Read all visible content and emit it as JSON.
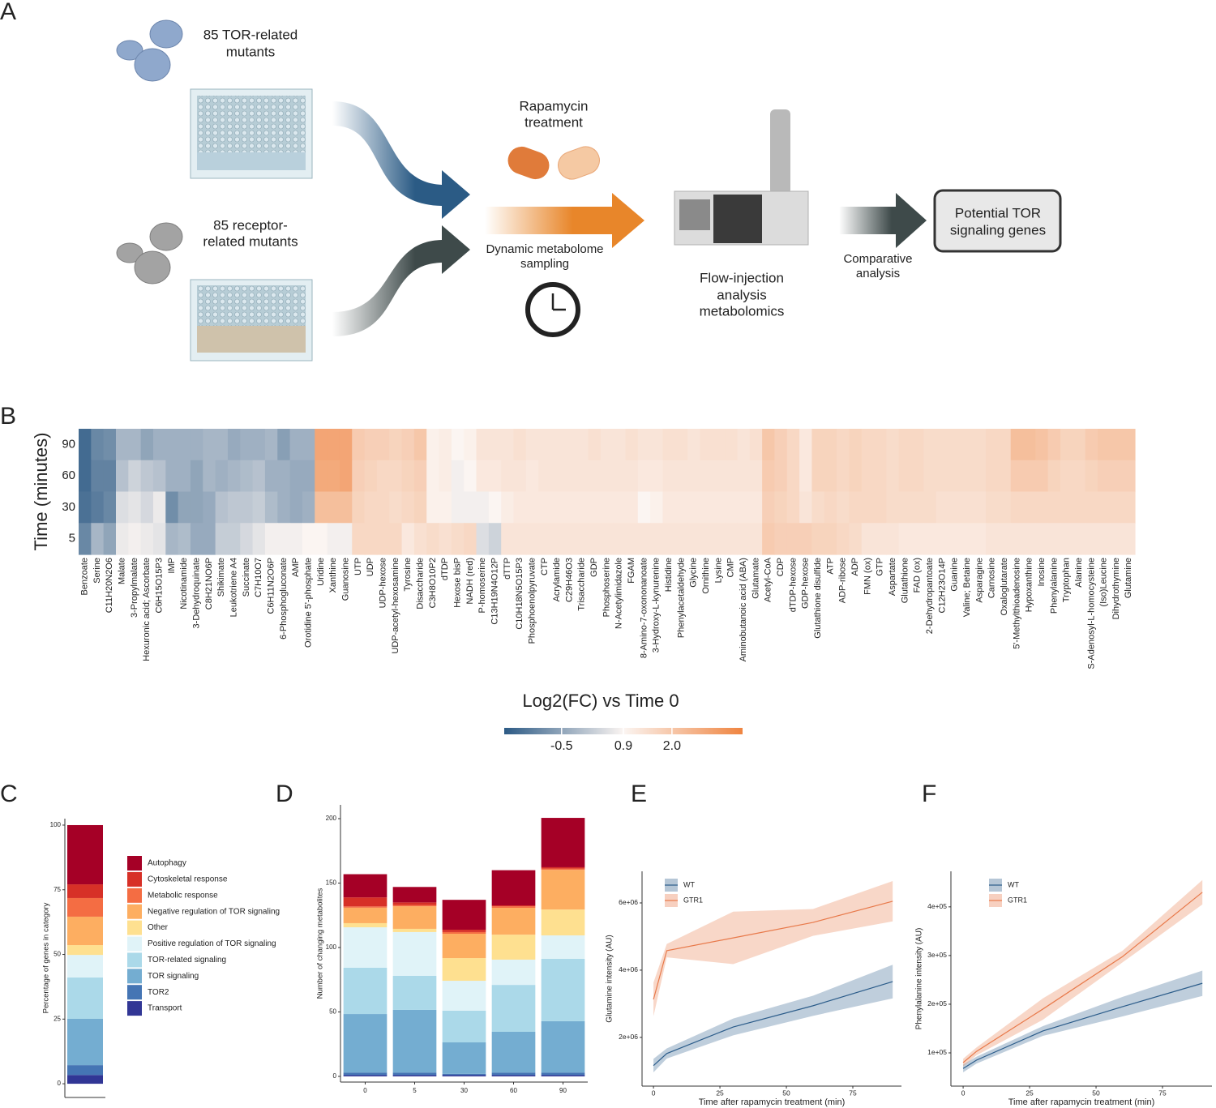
{
  "panel_labels": [
    "A",
    "B",
    "C",
    "D",
    "E",
    "F"
  ],
  "diagram": {
    "tor_mutants": [
      "85 TOR-related",
      "mutants"
    ],
    "receptor_mutants": [
      "85 receptor-",
      "related mutants"
    ],
    "rapamycin": [
      "Rapamycin",
      "treatment"
    ],
    "sampling": [
      "Dynamic metabolome",
      "sampling"
    ],
    "fia": [
      "Flow-injection",
      "analysis",
      "metabolomics"
    ],
    "comparative": [
      "Comparative",
      "analysis"
    ],
    "result": [
      "Potential TOR",
      "signaling genes"
    ]
  },
  "chart_data": [
    {
      "type": "heatmap",
      "title": "Log2(FC) vs Time 0",
      "y_label": "Time (minutes)",
      "categories": [
        "Benzoate",
        "Serine",
        "C11H20N2O6",
        "Malate",
        "3-Propylmalate",
        "Hexuronic acid; Ascorbate",
        "C6H15O15P3",
        "IMP",
        "Nicotinamide",
        "3-Dehydroquinate",
        "C8H21NO6P",
        "Shikimate",
        "Leukotriene A4",
        "Succinate",
        "C7H10O7",
        "C6H11N2O6P",
        "6-Phosphogluconate",
        "AMP",
        "Orotidine 5'-phosphate",
        "Uridine",
        "Xanthine",
        "Guanosine",
        "UTP",
        "UDP",
        "UDP-hexose",
        "UDP-acetyl-hexosamine",
        "Tyrosine",
        "Disaccharide",
        "C3H8O10P2",
        "dTDP",
        "Hexose bisP",
        "NADH (red)",
        "P-homoserine",
        "C13H19N4O12P",
        "dTTP",
        "C10H18N5O15P3",
        "Phosphoenolpyruvate",
        "CTP",
        "Acrylamide",
        "C29H46O3",
        "Trisaccharide",
        "GDP",
        "Phosphoserine",
        "N-Acetylimidazole",
        "FGAM",
        "8-Amino-7-oxononanoate",
        "3-Hydroxy-L-kynurenine",
        "Histidine",
        "Phenylacetaldehyde",
        "Glycine",
        "Ornithine",
        "Lysine",
        "CMP",
        "Aminobutanoic acid (ABA)",
        "Glutamate",
        "Acetyl-CoA",
        "CDP",
        "dTDP-hexose",
        "GDP-hexose",
        "Glutathione disulfide",
        "ATP",
        "ADP-ribose",
        "ADP",
        "FMN (ox)",
        "GTP",
        "Aspartate",
        "Glutathione",
        "FAD (ox)",
        "2-Dehydropantoate",
        "C12H23O14P",
        "Guanine",
        "Valine; Betaine",
        "Asparagine",
        "Carnosine",
        "Oxaloglutarate",
        "5'-Methylthioadenosine",
        "Hypoxanthine",
        "Inosine",
        "Phenylalanine",
        "Tryptophan",
        "Alanine",
        "S-Adenosyl-L-homocysteine",
        "(Iso)Leucine",
        "Dihydrothymine",
        "Glutamine"
      ],
      "rows": [
        "90",
        "60",
        "30",
        "5"
      ],
      "values": [
        [
          -1.5,
          -1.0,
          -0.9,
          -0.2,
          -0.2,
          -0.5,
          -0.3,
          -0.3,
          -0.3,
          -0.3,
          -0.2,
          -0.2,
          -0.4,
          -0.3,
          -0.3,
          -0.2,
          -0.6,
          -0.3,
          -0.3,
          2.8,
          2.8,
          2.8,
          1.9,
          1.8,
          1.8,
          1.7,
          1.8,
          2.0,
          1.0,
          1.1,
          0.9,
          1.0,
          1.3,
          1.3,
          1.3,
          1.4,
          1.3,
          1.3,
          1.3,
          1.3,
          1.3,
          1.4,
          1.3,
          1.3,
          1.4,
          1.3,
          1.3,
          1.4,
          1.4,
          1.3,
          1.4,
          1.4,
          1.4,
          1.3,
          1.4,
          2.0,
          1.8,
          1.6,
          1.2,
          1.7,
          1.7,
          1.6,
          1.7,
          1.6,
          1.6,
          1.5,
          1.6,
          1.6,
          1.5,
          1.5,
          1.5,
          1.5,
          1.5,
          1.6,
          1.6,
          2.2,
          2.2,
          2.1,
          1.9,
          1.7,
          1.7,
          1.9,
          2.0,
          2.0,
          2.0
        ],
        [
          -1.5,
          -1.1,
          -1.1,
          0.0,
          0.3,
          0.1,
          0.0,
          -0.3,
          -0.3,
          -0.5,
          -0.2,
          -0.3,
          -0.2,
          -0.1,
          0.0,
          -0.3,
          -0.3,
          -0.4,
          -0.4,
          2.7,
          2.7,
          2.8,
          1.8,
          1.7,
          1.6,
          1.6,
          1.7,
          1.8,
          1.0,
          1.1,
          0.8,
          0.9,
          1.2,
          1.2,
          1.3,
          1.3,
          1.2,
          1.3,
          1.3,
          1.3,
          1.3,
          1.3,
          1.3,
          1.3,
          1.3,
          1.2,
          1.2,
          1.3,
          1.3,
          1.3,
          1.3,
          1.3,
          1.3,
          1.3,
          1.3,
          1.9,
          1.8,
          1.6,
          1.2,
          1.7,
          1.7,
          1.6,
          1.7,
          1.6,
          1.6,
          1.5,
          1.6,
          1.6,
          1.5,
          1.5,
          1.5,
          1.5,
          1.5,
          1.6,
          1.6,
          1.9,
          1.9,
          1.9,
          1.7,
          1.6,
          1.6,
          1.7,
          1.8,
          1.8,
          1.8
        ],
        [
          -1.4,
          -1.2,
          -1.0,
          0.5,
          0.6,
          0.4,
          0.7,
          -0.9,
          -0.5,
          -0.5,
          -0.4,
          0.0,
          0.1,
          0.1,
          0.2,
          -0.1,
          -0.3,
          -0.4,
          -0.3,
          2.2,
          2.2,
          2.2,
          1.7,
          1.6,
          1.6,
          1.5,
          1.6,
          1.7,
          1.0,
          1.0,
          0.8,
          0.8,
          0.8,
          0.9,
          1.1,
          1.2,
          1.2,
          1.2,
          1.2,
          1.2,
          1.2,
          1.2,
          1.2,
          1.2,
          1.2,
          0.9,
          1.0,
          1.2,
          1.2,
          1.2,
          1.2,
          1.2,
          1.2,
          1.2,
          1.2,
          1.8,
          1.7,
          1.6,
          1.3,
          1.5,
          1.6,
          1.5,
          1.6,
          1.6,
          1.6,
          1.5,
          1.5,
          1.5,
          1.5,
          1.4,
          1.4,
          1.4,
          1.4,
          1.5,
          1.5,
          1.6,
          1.6,
          1.6,
          1.6,
          1.6,
          1.6,
          1.6,
          1.6,
          1.6,
          1.6
        ],
        [
          -1.0,
          -0.2,
          -0.5,
          0.7,
          0.8,
          0.7,
          0.6,
          -0.2,
          -0.1,
          -0.4,
          -0.4,
          0.2,
          0.2,
          0.4,
          0.6,
          0.8,
          0.8,
          0.8,
          0.9,
          0.9,
          0.8,
          0.8,
          1.6,
          1.6,
          1.6,
          1.6,
          1.2,
          1.4,
          1.5,
          1.4,
          1.5,
          1.6,
          0.5,
          0.3,
          1.3,
          1.3,
          1.3,
          1.3,
          1.3,
          1.3,
          1.3,
          1.3,
          1.3,
          1.3,
          1.3,
          1.3,
          1.3,
          1.3,
          1.3,
          1.3,
          1.3,
          1.3,
          1.3,
          1.3,
          1.3,
          1.9,
          1.8,
          1.8,
          1.8,
          1.7,
          1.7,
          1.6,
          1.5,
          1.3,
          1.3,
          1.3,
          1.2,
          1.2,
          1.2,
          1.2,
          1.2,
          1.2,
          1.2,
          1.3,
          1.3,
          1.3,
          1.3,
          1.3,
          1.3,
          1.3,
          1.3,
          1.3,
          1.3,
          1.3,
          1.3
        ]
      ],
      "clim": [
        -1.8,
        3.6
      ],
      "colors": [
        "#2c5a85",
        "#fbf5f2",
        "#ef8440"
      ],
      "colorbar_ticks": [
        -0.5,
        0.9,
        {
          "value": 2,
          "label": "2.0"
        }
      ]
    },
    {
      "type": "bar",
      "stacked": true,
      "y_label": "Percentage of genes in category",
      "categories": [
        null
      ],
      "ylim": [
        -5.3,
        102.5
      ],
      "yticks": [
        0,
        25,
        50,
        75,
        100
      ],
      "legend": "right",
      "series": [
        {
          "name": "Transport",
          "color": "#313695",
          "values": [
            3.4
          ]
        },
        {
          "name": "TOR2",
          "color": "#4575b4",
          "values": [
            3.8
          ]
        },
        {
          "name": "TOR signaling",
          "color": "#74add1",
          "values": [
            17.9
          ]
        },
        {
          "name": "TOR-related signaling",
          "color": "#abd9e9",
          "values": [
            16
          ]
        },
        {
          "name": "Positive regulation of TOR signaling",
          "color": "#e0f3f8",
          "values": [
            8.7
          ]
        },
        {
          "name": "Other",
          "color": "#fee090",
          "values": [
            3.8
          ]
        },
        {
          "name": "Negative regulation of TOR signaling",
          "color": "#fdae61",
          "values": [
            11
          ]
        },
        {
          "name": "Metabolic response",
          "color": "#f46d43",
          "values": [
            7.2
          ]
        },
        {
          "name": "Cytoskeletal response",
          "color": "#d73027",
          "values": [
            5.3
          ]
        },
        {
          "name": "Autophagy",
          "color": "#a50026",
          "values": [
            22.9
          ]
        }
      ]
    },
    {
      "type": "bar",
      "stacked": true,
      "y_label": "Number of changing metabolites",
      "categories": [
        "0",
        "5",
        "30",
        "60",
        "90"
      ],
      "ylim": [
        -4.4,
        210.7
      ],
      "yticks": [
        0,
        50,
        100,
        150,
        200
      ],
      "series": [
        {
          "color": "#313695",
          "values": [
            1,
            1,
            1,
            1,
            1
          ]
        },
        {
          "color": "#4575b4",
          "values": [
            2,
            2,
            1,
            2,
            2
          ]
        },
        {
          "color": "#74add1",
          "values": [
            45.4,
            48.6,
            24.4,
            31.6,
            39.8
          ]
        },
        {
          "color": "#abd9e9",
          "values": [
            35.9,
            26.4,
            24.6,
            36.4,
            48.4
          ]
        },
        {
          "color": "#e0f3f8",
          "values": [
            31.4,
            34,
            23.2,
            19.6,
            18.2
          ]
        },
        {
          "color": "#fee090",
          "values": [
            3.2,
            2.5,
            17.6,
            19.4,
            20.1
          ]
        },
        {
          "color": "#fdae61",
          "values": [
            12,
            17.5,
            18.9,
            20.8,
            30.8
          ]
        },
        {
          "color": "#f46d43",
          "values": [
            1,
            1,
            1.3,
            1.2,
            1
          ]
        },
        {
          "color": "#d73027",
          "values": [
            7,
            2,
            1.8,
            0.7,
            1
          ]
        },
        {
          "color": "#a50026",
          "values": [
            18,
            12,
            23.2,
            27.3,
            38.3
          ]
        }
      ]
    },
    {
      "type": "line",
      "x_label": "Time after rapamycin treatment (min)",
      "y_label": "Glutamine  intensity (AU)",
      "x": [
        0,
        5,
        30,
        60,
        90
      ],
      "xlim": [
        -4.3,
        93.3
      ],
      "xticks": [
        0,
        25,
        50,
        75
      ],
      "ylim": [
        550000,
        6940000
      ],
      "yticks": [
        {
          "value": 2000000,
          "label": "2e+06"
        },
        {
          "value": 4000000,
          "label": "4e+06"
        },
        {
          "value": 6000000,
          "label": "6e+06"
        }
      ],
      "series": [
        {
          "name": "WT",
          "color": "#2b5c8a",
          "values": [
            1160000,
            1520000,
            2310000,
            2940000,
            3660000
          ],
          "errors": [
            200000,
            150000,
            250000,
            300000,
            500000
          ]
        },
        {
          "name": "GTR1",
          "color": "#e8794a",
          "values": [
            3130000,
            4580000,
            4960000,
            5420000,
            6050000
          ],
          "errors": [
            500000,
            200000,
            780000,
            400000,
            600000
          ]
        }
      ]
    },
    {
      "type": "line",
      "x_label": "Time after rapamycin treatment (min)",
      "y_label": "Phenylalanine  intensity (AU)",
      "x": [
        0,
        5,
        30,
        60,
        90
      ],
      "xlim": [
        -4.6,
        93.6
      ],
      "xticks": [
        0,
        25,
        50,
        75
      ],
      "ylim": [
        31700,
        473000
      ],
      "yticks": [
        {
          "value": 100000,
          "label": "1e+05"
        },
        {
          "value": 200000,
          "label": "2e+05"
        },
        {
          "value": 300000,
          "label": "3e+05"
        },
        {
          "value": 400000,
          "label": "4e+05"
        }
      ],
      "series": [
        {
          "name": "WT",
          "color": "#2b5c8a",
          "values": [
            68000,
            85000,
            145000,
            195000,
            243000
          ],
          "errors": [
            8000,
            7000,
            10000,
            20000,
            26000
          ]
        },
        {
          "name": "GTR1",
          "color": "#e8794a",
          "values": [
            80000,
            103000,
            190000,
            298000,
            430000
          ],
          "errors": [
            8000,
            8000,
            22000,
            12000,
            25000
          ]
        }
      ]
    }
  ]
}
